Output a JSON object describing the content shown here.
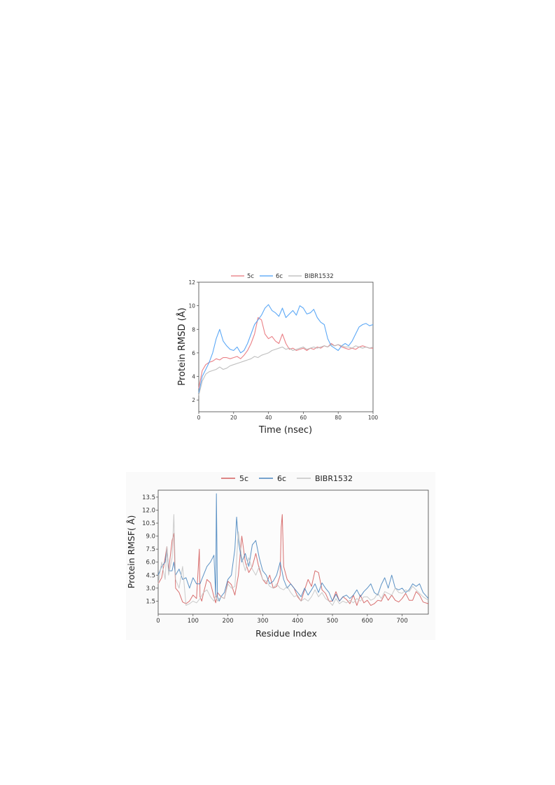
{
  "chart_data": [
    {
      "type": "line",
      "xlabel": "Time (nsec)",
      "ylabel": "Protein RMSD (Å)",
      "xlim": [
        0,
        100
      ],
      "ylim": [
        1,
        12
      ],
      "xticks": [
        "0",
        "20",
        "40",
        "60",
        "80",
        "100"
      ],
      "yticks": [
        "2",
        "4",
        "6",
        "8",
        "10",
        "12"
      ],
      "legend_position": "top-center",
      "series": [
        {
          "name": "5c",
          "color": "#e8737a",
          "x": [
            0,
            2,
            4,
            6,
            8,
            10,
            12,
            14,
            16,
            18,
            20,
            22,
            24,
            26,
            28,
            30,
            32,
            34,
            36,
            38,
            40,
            42,
            44,
            46,
            48,
            50,
            52,
            54,
            56,
            58,
            60,
            62,
            64,
            66,
            68,
            70,
            72,
            74,
            76,
            78,
            80,
            82,
            84,
            86,
            88,
            90,
            92,
            94,
            96,
            98,
            100
          ],
          "y": [
            3.0,
            4.5,
            5.0,
            5.2,
            5.3,
            5.5,
            5.4,
            5.6,
            5.6,
            5.5,
            5.6,
            5.7,
            5.5,
            5.8,
            6.2,
            6.8,
            7.6,
            9.0,
            8.8,
            7.6,
            7.2,
            7.4,
            7.0,
            6.8,
            7.6,
            6.8,
            6.3,
            6.4,
            6.2,
            6.3,
            6.4,
            6.2,
            6.4,
            6.3,
            6.5,
            6.4,
            6.6,
            6.5,
            6.8,
            6.6,
            6.7,
            6.5,
            6.4,
            6.3,
            6.4,
            6.3,
            6.5,
            6.6,
            6.5,
            6.4,
            6.4
          ]
        },
        {
          "name": "6c",
          "color": "#4a9ff5",
          "x": [
            0,
            2,
            4,
            6,
            8,
            10,
            12,
            14,
            16,
            18,
            20,
            22,
            24,
            26,
            28,
            30,
            32,
            34,
            36,
            38,
            40,
            42,
            44,
            46,
            48,
            50,
            52,
            54,
            56,
            58,
            60,
            62,
            64,
            66,
            68,
            70,
            72,
            74,
            76,
            78,
            80,
            82,
            84,
            86,
            88,
            90,
            92,
            94,
            96,
            98,
            100
          ],
          "y": [
            2.6,
            4.0,
            4.6,
            5.2,
            6.0,
            7.2,
            8.0,
            7.0,
            6.6,
            6.3,
            6.2,
            6.5,
            6.0,
            6.2,
            6.8,
            7.6,
            8.4,
            8.8,
            9.2,
            9.8,
            10.1,
            9.6,
            9.4,
            9.1,
            9.8,
            9.0,
            9.3,
            9.6,
            9.2,
            10.0,
            9.8,
            9.3,
            9.4,
            9.7,
            9.0,
            8.6,
            8.4,
            7.2,
            6.6,
            6.4,
            6.2,
            6.6,
            6.8,
            6.6,
            7.0,
            7.6,
            8.2,
            8.4,
            8.5,
            8.3,
            8.4
          ]
        },
        {
          "name": "BIBR1532",
          "color": "#b8b8b8",
          "x": [
            0,
            2,
            4,
            6,
            8,
            10,
            12,
            14,
            16,
            18,
            20,
            22,
            24,
            26,
            28,
            30,
            32,
            34,
            36,
            38,
            40,
            42,
            44,
            46,
            48,
            50,
            52,
            54,
            56,
            58,
            60,
            62,
            64,
            66,
            68,
            70,
            72,
            74,
            76,
            78,
            80,
            82,
            84,
            86,
            88,
            90,
            92,
            94,
            96,
            98,
            100
          ],
          "y": [
            2.4,
            3.6,
            4.2,
            4.4,
            4.5,
            4.6,
            4.8,
            4.6,
            4.7,
            4.9,
            5.0,
            5.1,
            5.2,
            5.3,
            5.4,
            5.5,
            5.7,
            5.6,
            5.8,
            5.9,
            6.0,
            6.2,
            6.3,
            6.4,
            6.5,
            6.3,
            6.4,
            6.2,
            6.3,
            6.4,
            6.5,
            6.3,
            6.4,
            6.5,
            6.4,
            6.5,
            6.6,
            6.5,
            6.7,
            6.6,
            6.7,
            6.6,
            6.5,
            6.5,
            6.4,
            6.6,
            6.5,
            6.4,
            6.5,
            6.4,
            6.5
          ]
        }
      ]
    },
    {
      "type": "line",
      "xlabel": "Residue Index",
      "ylabel": "Protein RMSF( Å)",
      "xlim": [
        0,
        775
      ],
      "ylim": [
        0,
        14.3
      ],
      "xticks": [
        "0",
        "100",
        "200",
        "300",
        "400",
        "500",
        "600",
        "700"
      ],
      "yticks": [
        "1.5",
        "3.0",
        "4.5",
        "6.0",
        "7.5",
        "9.0",
        "10.5",
        "12.0",
        "13.5"
      ],
      "legend_position": "top-center",
      "series": [
        {
          "name": "5c",
          "color": "#d45f5f",
          "x": [
            0,
            10,
            20,
            25,
            30,
            40,
            45,
            50,
            60,
            70,
            80,
            90,
            100,
            110,
            118,
            120,
            125,
            130,
            140,
            150,
            160,
            165,
            170,
            180,
            190,
            200,
            210,
            220,
            230,
            240,
            250,
            260,
            270,
            280,
            290,
            300,
            310,
            320,
            330,
            340,
            350,
            353,
            356,
            360,
            370,
            380,
            390,
            400,
            410,
            420,
            430,
            440,
            450,
            460,
            470,
            480,
            490,
            500,
            510,
            520,
            530,
            540,
            550,
            560,
            570,
            580,
            590,
            600,
            610,
            620,
            630,
            640,
            650,
            660,
            670,
            680,
            690,
            700,
            710,
            720,
            730,
            740,
            750,
            760,
            775
          ],
          "y": [
            3.5,
            4.2,
            6.5,
            7.8,
            5.0,
            8.5,
            9.3,
            3.0,
            2.5,
            1.4,
            1.2,
            1.5,
            2.2,
            1.8,
            7.5,
            2.0,
            1.5,
            2.4,
            4.0,
            3.6,
            2.0,
            1.3,
            2.5,
            2.0,
            1.8,
            3.8,
            3.4,
            2.2,
            4.5,
            9.0,
            6.0,
            4.8,
            5.5,
            7.0,
            5.2,
            4.0,
            3.5,
            4.5,
            3.0,
            3.2,
            4.5,
            10.0,
            11.5,
            5.5,
            4.0,
            3.5,
            3.0,
            2.0,
            1.5,
            2.8,
            4.0,
            3.2,
            5.0,
            4.8,
            2.8,
            2.4,
            1.5,
            1.5,
            2.6,
            1.5,
            2.0,
            1.7,
            1.2,
            2.2,
            1.0,
            2.2,
            1.3,
            1.6,
            1.0,
            1.2,
            1.6,
            1.5,
            2.3,
            1.6,
            2.2,
            1.6,
            1.4,
            1.8,
            2.4,
            1.6,
            1.6,
            2.6,
            2.2,
            1.4,
            1.2
          ]
        },
        {
          "name": "6c",
          "color": "#4a86bf",
          "x": [
            0,
            10,
            20,
            25,
            30,
            40,
            45,
            50,
            60,
            70,
            80,
            90,
            100,
            110,
            120,
            130,
            140,
            150,
            160,
            165,
            167,
            170,
            175,
            180,
            190,
            200,
            210,
            220,
            225,
            230,
            240,
            250,
            260,
            270,
            280,
            290,
            300,
            310,
            320,
            330,
            340,
            350,
            360,
            370,
            380,
            390,
            400,
            410,
            420,
            430,
            440,
            450,
            460,
            470,
            480,
            490,
            500,
            510,
            520,
            530,
            540,
            550,
            560,
            570,
            580,
            590,
            600,
            610,
            620,
            630,
            640,
            650,
            660,
            670,
            680,
            690,
            700,
            710,
            720,
            730,
            740,
            750,
            760,
            775
          ],
          "y": [
            4.5,
            5.5,
            6.0,
            7.5,
            5.0,
            5.0,
            6.0,
            4.5,
            5.2,
            4.0,
            4.2,
            3.0,
            4.2,
            3.5,
            3.5,
            4.5,
            5.5,
            6.0,
            6.8,
            2.0,
            13.9,
            2.0,
            1.5,
            2.0,
            2.5,
            4.0,
            4.5,
            7.5,
            11.2,
            8.5,
            6.0,
            7.0,
            5.5,
            8.0,
            8.5,
            6.5,
            5.0,
            4.5,
            3.5,
            3.8,
            4.5,
            6.0,
            4.0,
            3.0,
            3.5,
            3.0,
            2.5,
            2.0,
            3.0,
            2.2,
            2.8,
            3.5,
            2.5,
            3.6,
            3.0,
            2.5,
            1.5,
            2.3,
            1.5,
            2.0,
            2.2,
            1.8,
            2.2,
            2.8,
            2.0,
            2.6,
            3.0,
            3.5,
            2.5,
            2.2,
            3.4,
            4.2,
            3.0,
            4.5,
            3.0,
            2.8,
            3.0,
            2.5,
            2.8,
            3.5,
            3.2,
            3.5,
            2.5,
            1.8
          ]
        },
        {
          "name": "BIBR1532",
          "color": "#c4c4c4",
          "x": [
            0,
            10,
            20,
            25,
            30,
            40,
            45,
            50,
            60,
            70,
            80,
            90,
            100,
            110,
            120,
            130,
            140,
            150,
            160,
            165,
            170,
            180,
            190,
            200,
            210,
            220,
            230,
            240,
            250,
            260,
            270,
            280,
            290,
            300,
            310,
            320,
            330,
            340,
            350,
            360,
            370,
            380,
            390,
            400,
            410,
            420,
            430,
            440,
            450,
            460,
            470,
            480,
            490,
            500,
            510,
            520,
            530,
            540,
            550,
            560,
            570,
            580,
            590,
            600,
            610,
            620,
            630,
            640,
            650,
            660,
            670,
            680,
            690,
            700,
            710,
            720,
            730,
            740,
            750,
            760,
            775
          ],
          "y": [
            3.5,
            6.0,
            4.0,
            7.8,
            4.5,
            6.5,
            11.5,
            4.0,
            3.0,
            5.5,
            1.0,
            1.2,
            1.5,
            1.3,
            1.8,
            2.5,
            2.8,
            2.0,
            1.5,
            2.2,
            1.5,
            2.0,
            1.8,
            3.5,
            3.0,
            3.2,
            9.5,
            6.5,
            5.0,
            6.5,
            5.2,
            4.5,
            5.5,
            4.0,
            3.8,
            3.2,
            3.0,
            3.5,
            3.0,
            2.8,
            3.2,
            2.5,
            2.0,
            2.2,
            1.5,
            1.8,
            1.5,
            2.0,
            2.8,
            2.0,
            2.5,
            1.8,
            1.5,
            1.0,
            1.8,
            1.2,
            1.5,
            1.3,
            1.6,
            1.3,
            1.8,
            1.5,
            2.0,
            2.0,
            1.6,
            1.8,
            2.4,
            1.8,
            2.6,
            2.4,
            2.2,
            3.0,
            2.5,
            2.4,
            2.8,
            2.6,
            3.2,
            2.8,
            2.4,
            2.0,
            1.6
          ]
        }
      ]
    }
  ]
}
